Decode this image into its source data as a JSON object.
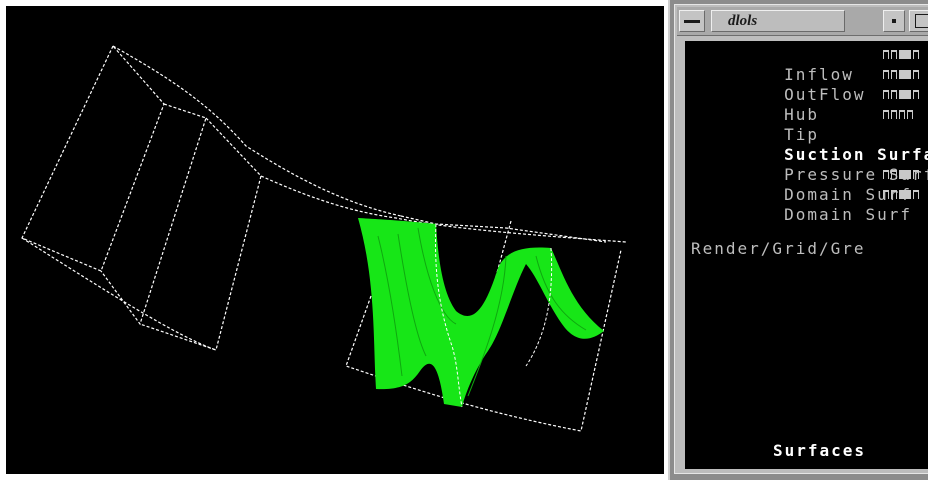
{
  "window": {
    "title": "dlols"
  },
  "panel": {
    "surfaces": [
      {
        "label": "Inflow",
        "selected": false,
        "toggles": [
          false,
          false,
          true,
          false
        ]
      },
      {
        "label": "OutFlow",
        "selected": false,
        "toggles": [
          false,
          false,
          true,
          false
        ]
      },
      {
        "label": "Hub",
        "selected": false,
        "toggles": [
          false,
          false,
          true,
          false
        ]
      },
      {
        "label": "Tip",
        "selected": false,
        "toggles": [
          false,
          false,
          false,
          false
        ]
      },
      {
        "label": "Suction Surface",
        "selected": true,
        "toggles": []
      },
      {
        "label": "Pressure Surface",
        "selected": false,
        "toggles": []
      },
      {
        "label": "Domain Surf",
        "selected": false,
        "toggles": [
          false,
          false,
          true,
          false
        ]
      },
      {
        "label": "Domain Surf",
        "selected": false,
        "toggles": [
          false,
          false,
          true,
          false
        ]
      }
    ],
    "status_text": "Render/Grid/Gre",
    "footer_label": "Surfaces"
  },
  "viewport": {
    "background_color": "#000000",
    "wireframe_color": "#ffffff",
    "surface_color": "#17e617"
  }
}
